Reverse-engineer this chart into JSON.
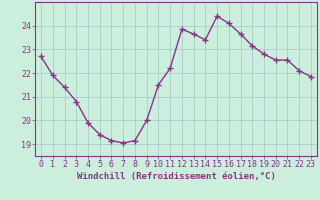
{
  "x": [
    0,
    1,
    2,
    3,
    4,
    5,
    6,
    7,
    8,
    9,
    10,
    11,
    12,
    13,
    14,
    15,
    16,
    17,
    18,
    19,
    20,
    21,
    22,
    23
  ],
  "y": [
    22.7,
    21.9,
    21.4,
    20.8,
    19.9,
    19.4,
    19.15,
    19.05,
    19.15,
    20.0,
    21.5,
    22.2,
    23.85,
    23.65,
    23.4,
    24.4,
    24.1,
    23.65,
    23.15,
    22.8,
    22.55,
    22.55,
    22.1,
    21.85
  ],
  "line_color": "#883388",
  "marker": "+",
  "markersize": 4,
  "linewidth": 1.0,
  "bg_color": "#cceedd",
  "grid_color": "#aacccc",
  "axis_color": "#883388",
  "xlabel": "Windchill (Refroidissement éolien,°C)",
  "xlabel_fontsize": 6.5,
  "tick_fontsize": 6.0,
  "yticks": [
    19,
    20,
    21,
    22,
    23,
    24
  ],
  "xticks": [
    0,
    1,
    2,
    3,
    4,
    5,
    6,
    7,
    8,
    9,
    10,
    11,
    12,
    13,
    14,
    15,
    16,
    17,
    18,
    19,
    20,
    21,
    22,
    23
  ],
  "ylim": [
    18.5,
    25.0
  ],
  "xlim": [
    -0.5,
    23.5
  ]
}
